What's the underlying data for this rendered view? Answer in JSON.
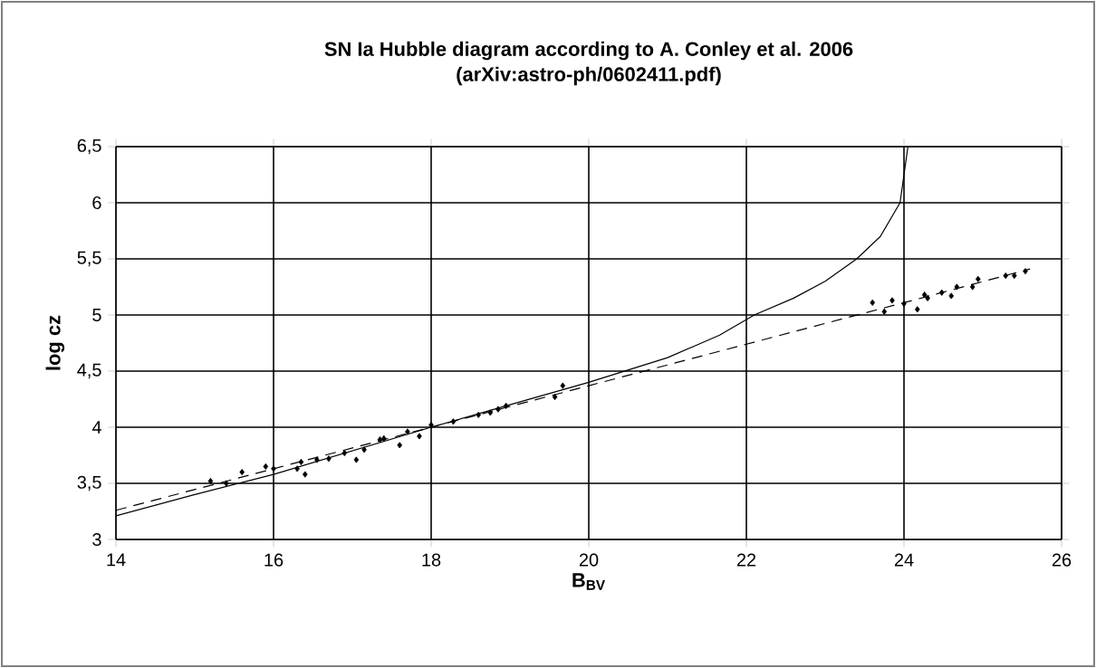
{
  "chart_data": {
    "type": "scatter",
    "title": "SN Ia Hubble diagram according to A. Conley et al. 2006",
    "subtitle": "(arXiv:astro-ph/0602411.pdf)",
    "xlabel": "B$_{BV}$",
    "ylabel": "log cz",
    "xlim": [
      14,
      26
    ],
    "xticks": [
      14,
      16,
      18,
      20,
      22,
      24,
      26
    ],
    "ylim": [
      3,
      6.5
    ],
    "yticks": [
      3,
      {
        "value": 3.5,
        "label": "3,5"
      },
      4,
      {
        "value": 4.5,
        "label": "4,5"
      },
      5,
      {
        "value": 5.5,
        "label": "5,5"
      },
      6,
      {
        "value": 6.5,
        "label": "6,5"
      }
    ],
    "grid": true,
    "series": [
      {
        "type": "line",
        "color": "#000000",
        "line_style": "solid",
        "marker": "none",
        "x": [
          14,
          15,
          16,
          17,
          18,
          19,
          20,
          21,
          21.66,
          22.1,
          22.6,
          23,
          23.4,
          23.7,
          23.95,
          24.0,
          24.05
        ],
        "values": [
          3.21,
          3.4,
          3.58,
          3.79,
          4.0,
          4.2,
          4.4,
          4.62,
          4.82,
          5.0,
          5.15,
          5.3,
          5.5,
          5.7,
          6.0,
          6.25,
          6.5
        ]
      },
      {
        "type": "line",
        "color": "#000000",
        "line_style": "dashed",
        "marker": "none",
        "x": [
          14,
          16,
          18,
          20,
          22,
          24,
          25.6
        ],
        "values": [
          3.26,
          3.63,
          4.0,
          4.37,
          4.74,
          5.11,
          5.41
        ]
      },
      {
        "color": "#000000",
        "marker": "diamond",
        "x": [
          15.2,
          15.4,
          15.6,
          15.9,
          16.0,
          16.3,
          16.35,
          16.4,
          16.55,
          16.7,
          16.9,
          17.05,
          17.15,
          17.35,
          17.4,
          17.6,
          17.7,
          17.85,
          18.0,
          18.28,
          18.6,
          18.75,
          18.85,
          18.95,
          19.57,
          19.67,
          23.6,
          23.75,
          23.85,
          24.0,
          24.17,
          24.26,
          24.3,
          24.48,
          24.6,
          24.67,
          24.87,
          24.94,
          25.29,
          25.4,
          25.54
        ],
        "values": [
          3.52,
          3.5,
          3.6,
          3.65,
          3.63,
          3.63,
          3.69,
          3.58,
          3.71,
          3.72,
          3.77,
          3.71,
          3.8,
          3.89,
          3.9,
          3.84,
          3.96,
          3.92,
          4.02,
          4.05,
          4.11,
          4.13,
          4.16,
          4.19,
          4.27,
          4.37,
          5.11,
          5.03,
          5.13,
          5.1,
          5.05,
          5.18,
          5.15,
          5.2,
          5.17,
          5.25,
          5.25,
          5.32,
          5.35,
          5.35,
          5.39
        ]
      }
    ]
  }
}
